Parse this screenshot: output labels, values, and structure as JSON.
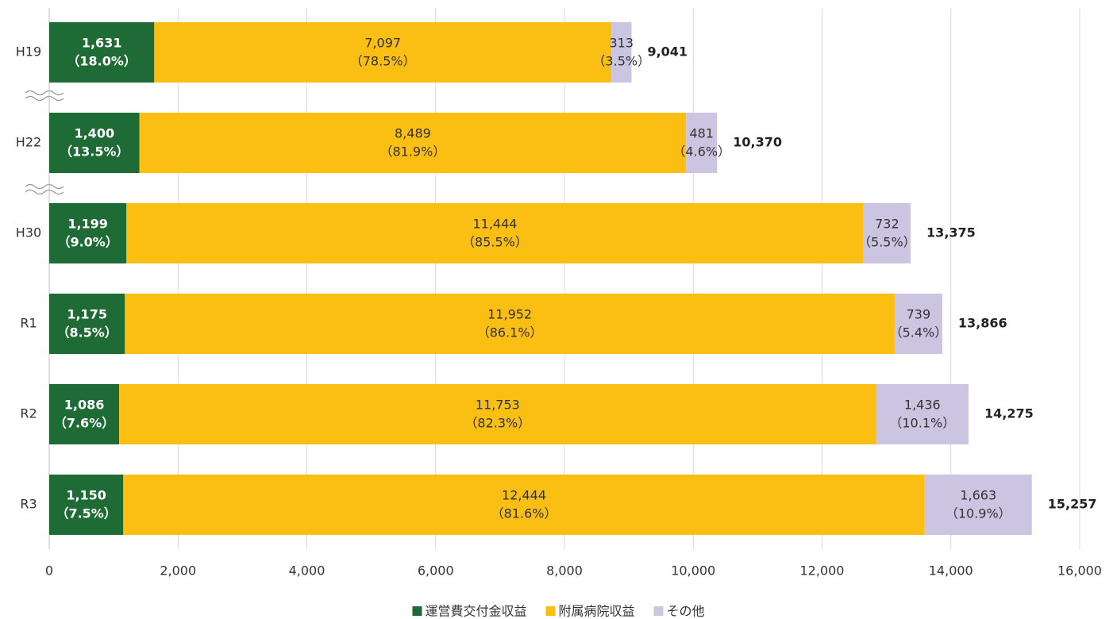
{
  "chart_data": {
    "type": "stacked-bar-horizontal",
    "categories": [
      "H19",
      "H22",
      "H30",
      "R1",
      "R2",
      "R3"
    ],
    "series": [
      {
        "name": "運営費交付金収益",
        "color": "#1e6b35",
        "values": [
          1631,
          1400,
          1199,
          1175,
          1086,
          1150
        ],
        "value_labels": [
          "1,631",
          "1,400",
          "1,199",
          "1,175",
          "1,086",
          "1,150"
        ],
        "share_labels": [
          "（18.0%）",
          "（13.5%）",
          "（9.0%）",
          "（8.5%）",
          "（7.6%）",
          "（7.5%）"
        ]
      },
      {
        "name": "附属病院収益",
        "color": "#fbbf14",
        "values": [
          7097,
          8489,
          11444,
          11952,
          11753,
          12444
        ],
        "value_labels": [
          "7,097",
          "8,489",
          "11,444",
          "11,952",
          "11,753",
          "12,444"
        ],
        "share_labels": [
          "（78.5%）",
          "（81.9%）",
          "（85.5%）",
          "（86.1%）",
          "（82.3%）",
          "（81.6%）"
        ]
      },
      {
        "name": "その他",
        "color": "#cbc5e2",
        "values": [
          313,
          481,
          732,
          739,
          1436,
          1663
        ],
        "value_labels": [
          "313",
          "481",
          "732",
          "739",
          "1,436",
          "1,663"
        ],
        "share_labels": [
          "（3.5%）",
          "（4.6%）",
          "（5.5%）",
          "（5.4%）",
          "（10.1%）",
          "（10.9%）"
        ]
      }
    ],
    "totals": [
      9041,
      10370,
      13375,
      13866,
      14275,
      15257
    ],
    "total_labels": [
      "9,041",
      "10,370",
      "13,375",
      "13,866",
      "14,275",
      "15,257"
    ],
    "xlim": [
      0,
      16000
    ],
    "xticks": [
      0,
      {
        "value": 2000,
        "label": "2,000"
      },
      {
        "value": 4000,
        "label": "4,000"
      },
      {
        "value": 6000,
        "label": "6,000"
      },
      {
        "value": 8000,
        "label": "8,000"
      },
      {
        "value": 10000,
        "label": "10,000"
      },
      {
        "value": 12000,
        "label": "12,000"
      },
      {
        "value": 14000,
        "label": "14,000"
      },
      {
        "value": 16000,
        "label": "16,000"
      }
    ],
    "grid": true,
    "legend": "bottom"
  }
}
